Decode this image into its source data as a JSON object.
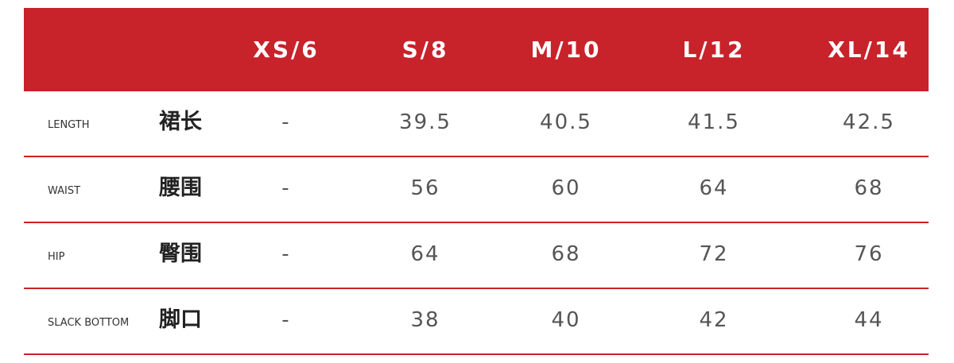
{
  "table": {
    "header": [
      "XS/6",
      "S/8",
      "M/10",
      "L/12",
      "XL/14"
    ],
    "rows": [
      {
        "en": "LENGTH",
        "zh": "裙长",
        "values": [
          "-",
          "39.5",
          "40.5",
          "41.5",
          "42.5"
        ]
      },
      {
        "en": "WAIST",
        "zh": "腰围",
        "values": [
          "-",
          "56",
          "60",
          "64",
          "68"
        ]
      },
      {
        "en": "HIP",
        "zh": "臀围",
        "values": [
          "-",
          "64",
          "68",
          "72",
          "76"
        ]
      },
      {
        "en": "SLACK BOTTOM",
        "zh": "脚口",
        "values": [
          "-",
          "38",
          "40",
          "42",
          "44"
        ]
      }
    ]
  }
}
